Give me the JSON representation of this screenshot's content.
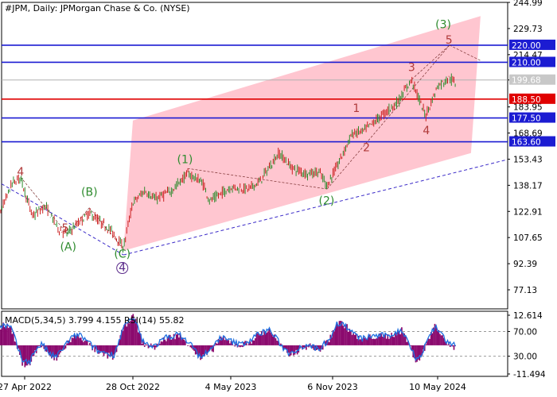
{
  "chart_data": {
    "type": "line",
    "title": "#JPM, Daily:  JPMorgan Chase & Co. (NYSE)",
    "instrument": "#JPM",
    "timeframe": "Daily",
    "company": "JPMorgan Chase & Co. (NYSE)",
    "x_tick_labels": [
      "27 Apr 2022",
      "28 Oct 2022",
      "4 May 2023",
      "6 Nov 2023",
      "10 May 2024"
    ],
    "price_axis": {
      "ylim": [
        66,
        245
      ],
      "tick_values": [
        244.99,
        229.73,
        214.47,
        199.68,
        183.95,
        168.69,
        153.43,
        138.17,
        122.91,
        107.65,
        92.39,
        77.13
      ],
      "tick_labels": [
        "244.99",
        "229.73",
        "214.47",
        "199.68",
        "183.95",
        "168.69",
        "153.43",
        "138.17",
        "122.91",
        "107.65",
        "92.39",
        "77.13"
      ],
      "current_price": 199.68
    },
    "levels": [
      {
        "value": 220.0,
        "label": "220.00",
        "color": "#1c1cd2"
      },
      {
        "value": 210.0,
        "label": "210.00",
        "color": "#1c1cd2"
      },
      {
        "value": 188.5,
        "label": "188.50",
        "color": "#e00000"
      },
      {
        "value": 177.5,
        "label": "177.50",
        "color": "#1c1cd2"
      },
      {
        "value": 163.6,
        "label": "163.60",
        "color": "#1c1cd2"
      }
    ],
    "price_series": {
      "x": [
        "27 Apr 2022",
        "28 Oct 2022",
        "4 May 2023",
        "6 Nov 2023",
        "10 May 2024"
      ],
      "y": [
        133,
        100,
        140,
        137,
        197
      ]
    },
    "wave_labels": [
      {
        "text": "4",
        "kind": "minor",
        "x": "2022-04-20",
        "y": 144
      },
      {
        "text": "3",
        "kind": "minor",
        "x": "2022-03-01",
        "y": 115
      },
      {
        "text": "5",
        "kind": "minor",
        "x": "2022-07-05",
        "y": 111
      },
      {
        "text": "(A)",
        "kind": "intermediate",
        "x": "2022-07-10",
        "y": 100
      },
      {
        "text": "(B)",
        "kind": "intermediate",
        "x": "2022-08-15",
        "y": 132
      },
      {
        "text": "(C)",
        "kind": "intermediate",
        "x": "2022-10-10",
        "y": 96
      },
      {
        "text": "4",
        "kind": "primary",
        "x": "2022-10-10",
        "y": 88
      },
      {
        "text": "(1)",
        "kind": "intermediate",
        "x": "2023-02-05",
        "y": 151
      },
      {
        "text": "(2)",
        "kind": "intermediate",
        "x": "2023-10-26",
        "y": 127
      },
      {
        "text": "1",
        "kind": "minor",
        "x": "2023-12-18",
        "y": 181
      },
      {
        "text": "2",
        "kind": "minor",
        "x": "2024-01-05",
        "y": 158
      },
      {
        "text": "3",
        "kind": "minor",
        "x": "2024-03-25",
        "y": 205
      },
      {
        "text": "4",
        "kind": "minor",
        "x": "2024-04-20",
        "y": 168
      },
      {
        "text": "(3)",
        "kind": "intermediate",
        "x": "2024-05-20",
        "y": 230
      },
      {
        "text": "5",
        "kind": "minor",
        "x": "2024-05-30",
        "y": 221
      }
    ],
    "indicator": {
      "title": "MACD(5,34,5) 3.799 4.155 RSI(14) 55.82",
      "macd_params": [
        5,
        34,
        5
      ],
      "macd_main": 3.799,
      "macd_signal": 4.155,
      "rsi_period": 14,
      "rsi_value": 55.82,
      "axis_labels": [
        "12.614",
        "70.00",
        "30.00",
        "-11.494"
      ],
      "macd_range": [
        -11.494,
        12.614
      ],
      "rsi_levels": [
        70,
        30
      ]
    },
    "colors": {
      "channel": "#ffc0cb",
      "bull_candle": "#2e8b2e",
      "bear_candle": "#cc2020",
      "wave_green": "#2e8b2e",
      "wave_red": "#b03a3a",
      "wave_purple": "#5a2a8a",
      "macd": "#8b0a6e",
      "rsi": "#2070e0",
      "support_line": "#3a2ac8"
    },
    "grid": false
  }
}
